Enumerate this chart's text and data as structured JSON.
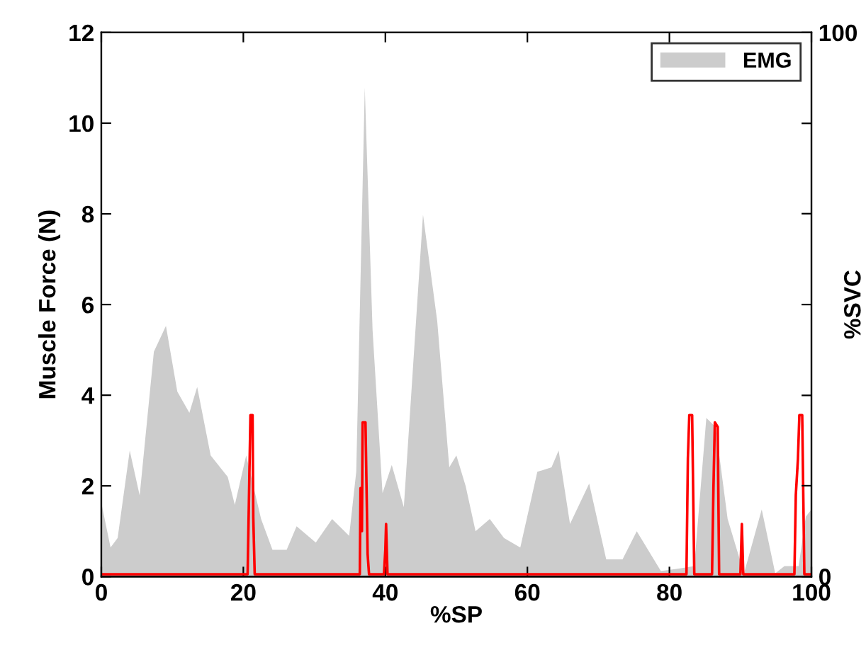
{
  "chart_data": {
    "type": "area",
    "xlabel": "%SP",
    "ylabel": "Muscle Force (N)",
    "y2label": "%SVC",
    "xlim": [
      0,
      100
    ],
    "ylim": [
      0,
      12
    ],
    "xticks": [
      0,
      20,
      40,
      60,
      80,
      100
    ],
    "yticks": [
      0,
      2,
      4,
      6,
      8,
      10,
      12
    ],
    "y2lim": [
      0,
      100
    ],
    "y2ticks": [
      0,
      {
        "value": 16.7,
        "label": null
      },
      {
        "value": 33.3,
        "label": null
      },
      {
        "value": 50,
        "label": null
      },
      {
        "value": 66.7,
        "label": null
      },
      {
        "value": 83.3,
        "label": null
      },
      100
    ],
    "grid": false,
    "legend": "top right",
    "series": [
      {
        "name": "EMG",
        "color": "#cccccc",
        "x": [
          0,
          1.3,
          2.3,
          4.0,
          5.4,
          7.4,
          9.1,
          10.7,
          12.4,
          13.5,
          15.4,
          17.8,
          18.8,
          20.4,
          22.5,
          24.1,
          26.1,
          27.5,
          30.2,
          32.5,
          34.9,
          35.9,
          37.1,
          38.2,
          39.6,
          40.9,
          42.6,
          45.3,
          47.3,
          49.0,
          50.0,
          51.3,
          52.7,
          54.7,
          56.7,
          59.0,
          61.4,
          63.4,
          64.4,
          66.0,
          68.7,
          71.1,
          73.4,
          75.4,
          78.8,
          81.5,
          83.5,
          85.2,
          86.5,
          88.2,
          90.5,
          93.0,
          94.9,
          96.2,
          98.2,
          99.2,
          100
        ],
        "values": [
          1.63,
          0.64,
          0.85,
          2.78,
          1.79,
          4.96,
          5.53,
          4.08,
          3.61,
          4.18,
          2.67,
          2.2,
          1.58,
          2.67,
          1.27,
          0.59,
          0.59,
          1.11,
          0.75,
          1.27,
          0.9,
          2.31,
          10.79,
          5.43,
          1.84,
          2.46,
          1.53,
          7.98,
          5.64,
          2.41,
          2.67,
          2.0,
          1.0,
          1.27,
          0.85,
          0.64,
          2.31,
          2.41,
          2.78,
          1.16,
          2.05,
          0.38,
          0.38,
          1.0,
          0.12,
          0.18,
          0.23,
          3.5,
          3.3,
          1.27,
          0.07,
          1.48,
          0.07,
          0.23,
          0.23,
          1.32,
          1.48
        ]
      },
      {
        "type": "line",
        "color": "#ff0000",
        "x": [
          0,
          20.6,
          20.7,
          20.9,
          21.0,
          21.3,
          21.4,
          21.6,
          36.4,
          36.5,
          36.7,
          36.8,
          37.2,
          37.5,
          37.7,
          39.8,
          40.0,
          40.1,
          40.3,
          82.4,
          82.6,
          82.8,
          83.2,
          83.5,
          86.0,
          86.2,
          86.4,
          86.8,
          87.0,
          90.0,
          90.2,
          90.4,
          97.6,
          97.8,
          98.1,
          98.3,
          98.7,
          99.0,
          100
        ],
        "values": [
          0.05,
          0.05,
          0.9,
          2.7,
          3.56,
          3.56,
          1.3,
          0.05,
          0.05,
          1.95,
          1.0,
          3.4,
          3.4,
          0.5,
          0.05,
          0.05,
          0.6,
          1.16,
          0.05,
          0.05,
          2.6,
          3.56,
          3.56,
          0.05,
          0.05,
          1.95,
          3.4,
          3.3,
          0.05,
          0.05,
          1.16,
          0.05,
          0.05,
          1.8,
          2.6,
          3.56,
          3.56,
          0.05,
          0.05
        ]
      }
    ]
  }
}
